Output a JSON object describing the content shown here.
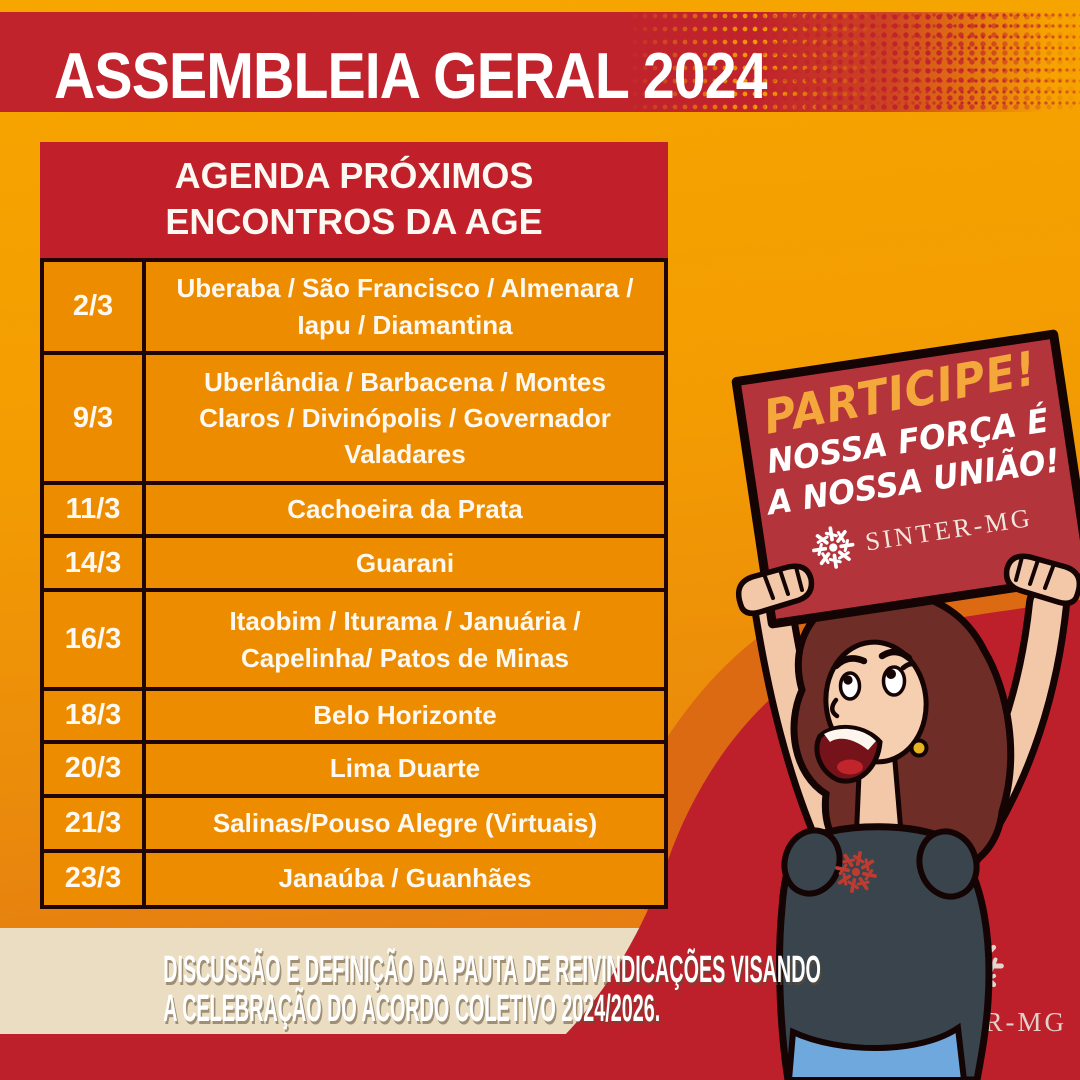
{
  "banner": {
    "title": "ASSEMBLEIA GERAL 2024"
  },
  "agenda": {
    "header_line1": "AGENDA PRÓXIMOS",
    "header_line2": "ENCONTROS DA AGE",
    "rows": [
      {
        "date": "2/3",
        "locations": "Uberaba / São Francisco / Almenara / Iapu / Diamantina"
      },
      {
        "date": "9/3",
        "locations": "Uberlândia / Barbacena / Montes Claros / Divinópolis / Governador Valadares"
      },
      {
        "date": "11/3",
        "locations": "Cachoeira da Prata"
      },
      {
        "date": "14/3",
        "locations": "Guarani"
      },
      {
        "date": "16/3",
        "locations": "Itaobim / Iturama / Januária / Capelinha/ Patos de Minas"
      },
      {
        "date": "18/3",
        "locations": "Belo Horizonte"
      },
      {
        "date": "20/3",
        "locations": "Lima Duarte"
      },
      {
        "date": "21/3",
        "locations": "Salinas/Pouso Alegre (Virtuais)"
      },
      {
        "date": "23/3",
        "locations": "Janaúba / Guanhães"
      }
    ]
  },
  "sign": {
    "line1": "PARTICIPE!",
    "line2": "NOSSA FORÇA É",
    "line3": "A NOSSA UNIÃO!",
    "logo_text": "SINTER-MG"
  },
  "footer": {
    "line1": "DISCUSSÃO E DEFINIÇÃO DA PAUTA DE REIVINDICAÇÕES VISANDO",
    "line2": "A CELEBRAÇÃO DO ACORDO COLETIVO 2024/2026."
  },
  "watermark": {
    "logo_text": "SINTER-MG"
  },
  "colors": {
    "banner_red": "#C0232C",
    "header_red": "#C1202B",
    "cell_orange": "#EE8C00",
    "background_orange_top": "#F7A600",
    "background_orange_bottom": "#E06F17",
    "sign_red": "#B4343C",
    "sign_yellow": "#F4A73B",
    "blob_red": "#BE202B",
    "dark_orange_band": "#DC6A12",
    "cream_strip": "#EADDC1",
    "table_border": "#1F0505",
    "text_white": "#FFFFFF"
  }
}
